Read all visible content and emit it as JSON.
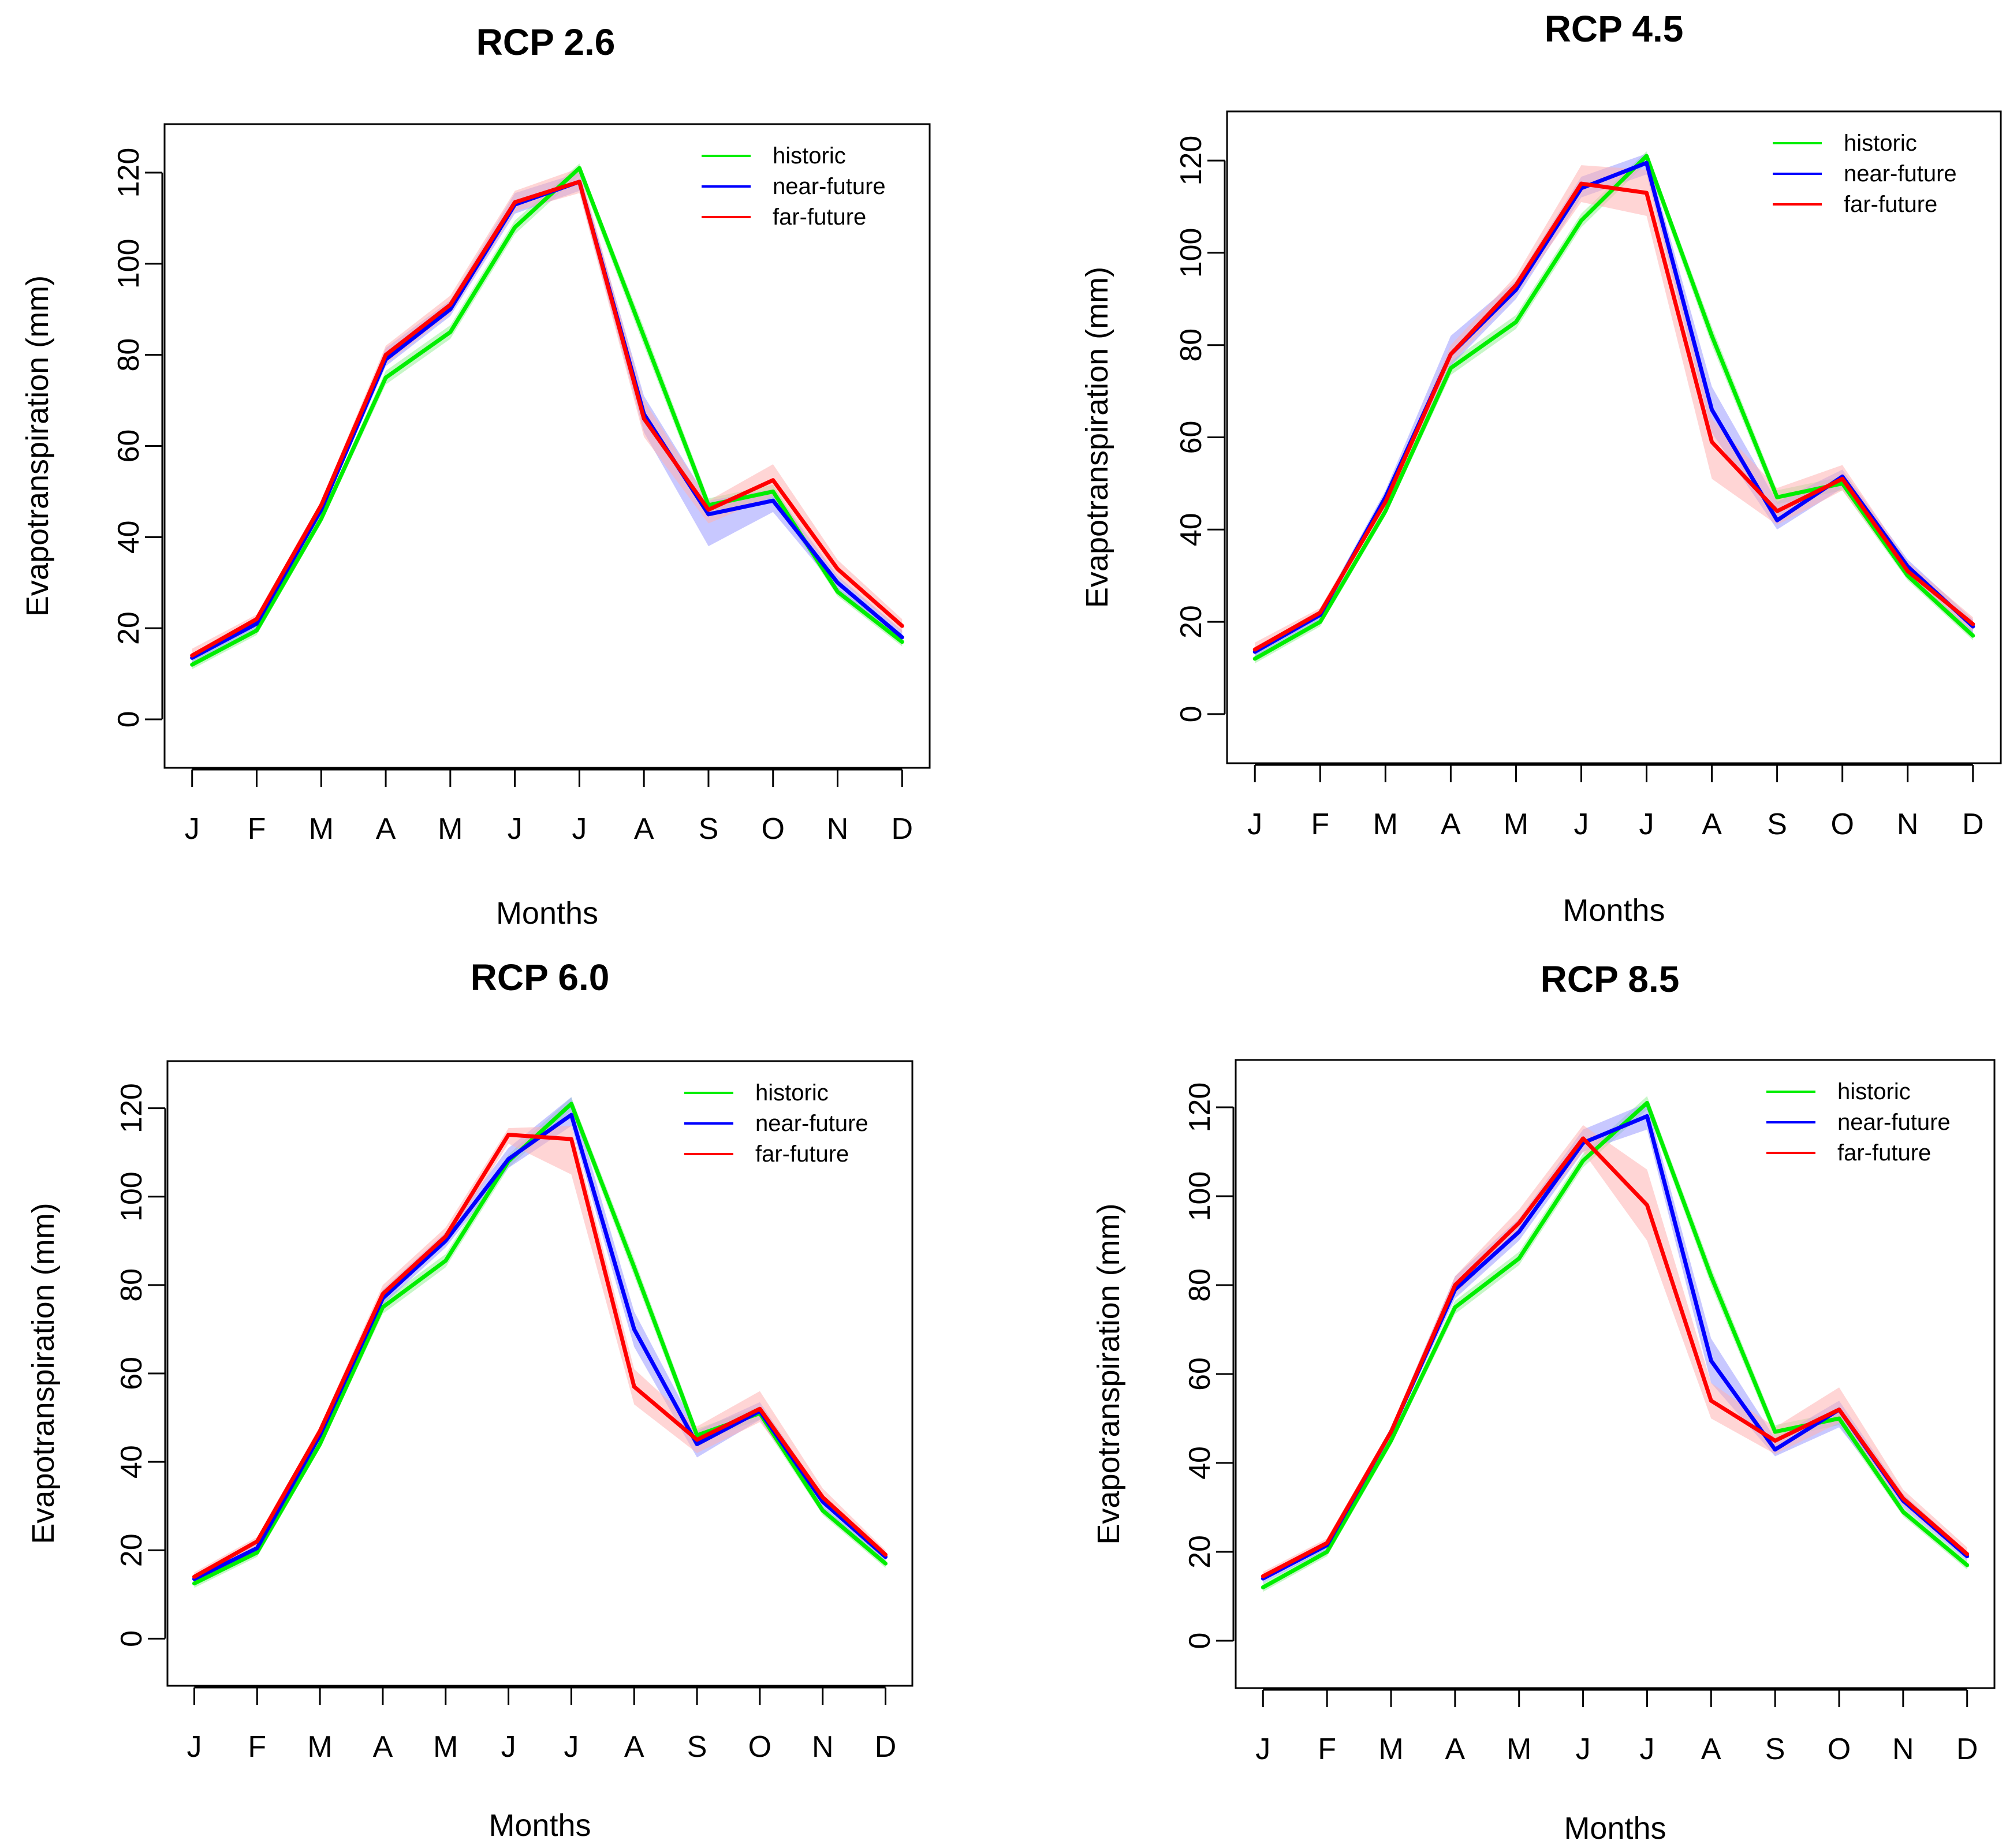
{
  "colors": {
    "historic": "#00ee00",
    "near_future": "#0000ff",
    "far_future": "#ff0000",
    "near_future_band": "#9a9aff",
    "far_future_band": "#ffb3b3",
    "historic_band": "#99ee99"
  },
  "chart_data": [
    {
      "type": "line",
      "title": "RCP 2.6",
      "xlabel": "Months",
      "ylabel": "Evapotranspiration (mm)",
      "categories": [
        "J",
        "F",
        "M",
        "A",
        "M",
        "J",
        "J",
        "A",
        "S",
        "O",
        "N",
        "D"
      ],
      "yticks": [
        0,
        20,
        40,
        60,
        80,
        100,
        120
      ],
      "ylim": [
        -5,
        125
      ],
      "legend_position": "top-right",
      "series": [
        {
          "name": "historic",
          "color_key": "historic",
          "values": [
            12,
            19.5,
            44,
            75,
            85,
            108,
            121,
            84,
            47,
            50,
            28,
            17
          ],
          "band": [
            [
              11,
              13
            ],
            [
              18.5,
              20.5
            ],
            [
              43,
              45
            ],
            [
              73.5,
              76.5
            ],
            [
              83.5,
              86.5
            ],
            [
              106.5,
              109.5
            ],
            [
              119.5,
              122
            ],
            [
              82,
              86
            ],
            [
              45.5,
              48.5
            ],
            [
              48.5,
              51.5
            ],
            [
              27,
              29
            ],
            [
              16,
              18
            ]
          ]
        },
        {
          "name": "near-future",
          "color_key": "near_future",
          "values": [
            13.5,
            21,
            46,
            79,
            90,
            113,
            118,
            67,
            45,
            48,
            30,
            18
          ],
          "band": [
            [
              12.5,
              14.5
            ],
            [
              20,
              22
            ],
            [
              45,
              47
            ],
            [
              77.5,
              81.5
            ],
            [
              88.5,
              92
            ],
            [
              111,
              115.5
            ],
            [
              116,
              120
            ],
            [
              63,
              71
            ],
            [
              38,
              48
            ],
            [
              45.5,
              50.5
            ],
            [
              28.5,
              31.5
            ],
            [
              16.5,
              19.5
            ]
          ]
        },
        {
          "name": "far-future",
          "color_key": "far_future",
          "values": [
            14,
            22,
            47,
            80,
            91,
            113.5,
            118,
            66,
            46,
            52.5,
            33,
            20.5
          ],
          "band": [
            [
              13,
              15.5
            ],
            [
              21,
              23
            ],
            [
              46,
              48
            ],
            [
              78,
              82
            ],
            [
              89,
              93
            ],
            [
              111.5,
              116
            ],
            [
              115.5,
              121
            ],
            [
              62,
              70
            ],
            [
              43,
              48
            ],
            [
              49,
              56
            ],
            [
              31,
              35
            ],
            [
              19,
              22
            ]
          ]
        }
      ]
    },
    {
      "type": "line",
      "title": "RCP 4.5",
      "xlabel": "Months",
      "ylabel": "Evapotranspiration (mm)",
      "categories": [
        "J",
        "F",
        "M",
        "A",
        "M",
        "J",
        "J",
        "A",
        "S",
        "O",
        "N",
        "D"
      ],
      "yticks": [
        0,
        20,
        40,
        60,
        80,
        100,
        120
      ],
      "ylim": [
        -5,
        125
      ],
      "legend_position": "top-right",
      "series": [
        {
          "name": "historic",
          "color_key": "historic",
          "values": [
            12,
            20,
            44,
            75,
            85,
            107,
            121,
            82,
            47,
            50,
            30,
            17
          ],
          "band": [
            [
              11,
              13
            ],
            [
              19,
              21
            ],
            [
              43,
              45
            ],
            [
              73.5,
              76.5
            ],
            [
              83.5,
              86.5
            ],
            [
              105.5,
              108.5
            ],
            [
              119.5,
              122
            ],
            [
              80,
              84
            ],
            [
              45.5,
              48.5
            ],
            [
              48.5,
              51.5
            ],
            [
              29,
              31
            ],
            [
              16,
              18
            ]
          ]
        },
        {
          "name": "near-future",
          "color_key": "near_future",
          "values": [
            13.5,
            21.5,
            47,
            78,
            92,
            114,
            119.5,
            66,
            42,
            51.5,
            32,
            19
          ],
          "band": [
            [
              12.5,
              14.5
            ],
            [
              20.5,
              22.5
            ],
            [
              46,
              48.5
            ],
            [
              75.5,
              82
            ],
            [
              90,
              94
            ],
            [
              112,
              116.5
            ],
            [
              117,
              121.5
            ],
            [
              61,
              71
            ],
            [
              40,
              46
            ],
            [
              49,
              53
            ],
            [
              30.5,
              33.5
            ],
            [
              17.5,
              20.5
            ]
          ]
        },
        {
          "name": "far-future",
          "color_key": "far_future",
          "values": [
            14,
            22,
            46,
            78,
            93,
            115,
            113,
            59,
            44,
            51,
            31,
            19.5
          ],
          "band": [
            [
              13,
              15.5
            ],
            [
              21,
              23
            ],
            [
              45,
              47.5
            ],
            [
              76,
              80
            ],
            [
              91,
              95
            ],
            [
              111,
              119
            ],
            [
              108,
              118
            ],
            [
              51,
              64
            ],
            [
              41,
              49
            ],
            [
              48.5,
              54
            ],
            [
              29.5,
              33
            ],
            [
              18,
              21
            ]
          ]
        }
      ]
    },
    {
      "type": "line",
      "title": "RCP 6.0",
      "xlabel": "Months",
      "ylabel": "Evapotranspiration (mm)",
      "categories": [
        "J",
        "F",
        "M",
        "A",
        "M",
        "J",
        "J",
        "A",
        "S",
        "O",
        "N",
        "D"
      ],
      "yticks": [
        0,
        20,
        40,
        60,
        80,
        100,
        120
      ],
      "ylim": [
        -5,
        125
      ],
      "legend_position": "top-right",
      "series": [
        {
          "name": "historic",
          "color_key": "historic",
          "values": [
            12.5,
            19.5,
            44,
            75,
            85.5,
            108,
            121,
            84,
            46,
            51,
            29,
            17
          ],
          "band": [
            [
              11.5,
              13.5
            ],
            [
              18.5,
              20.5
            ],
            [
              43,
              45
            ],
            [
              73.5,
              76.5
            ],
            [
              84,
              87
            ],
            [
              106.5,
              109.5
            ],
            [
              119.5,
              122.5
            ],
            [
              82,
              86
            ],
            [
              44.5,
              47.5
            ],
            [
              49.5,
              52.5
            ],
            [
              28,
              30
            ],
            [
              16,
              18
            ]
          ]
        },
        {
          "name": "near-future",
          "color_key": "near_future",
          "values": [
            13.5,
            20.5,
            46,
            77,
            90,
            108.5,
            118.5,
            70,
            44,
            51.5,
            31,
            18.5
          ],
          "band": [
            [
              12.5,
              14.5
            ],
            [
              19.5,
              21.5
            ],
            [
              45,
              47
            ],
            [
              75.5,
              79
            ],
            [
              88.5,
              92
            ],
            [
              106.5,
              111
            ],
            [
              116,
              122.5
            ],
            [
              66,
              74
            ],
            [
              41,
              47
            ],
            [
              49.5,
              53.5
            ],
            [
              29.5,
              32.5
            ],
            [
              17.5,
              19.5
            ]
          ]
        },
        {
          "name": "far-future",
          "color_key": "far_future",
          "values": [
            14,
            22,
            47,
            78,
            91,
            114,
            113,
            57,
            45,
            52,
            32,
            19
          ],
          "band": [
            [
              13,
              15
            ],
            [
              21,
              23
            ],
            [
              46,
              48
            ],
            [
              76.5,
              80
            ],
            [
              89.5,
              93
            ],
            [
              112,
              115.5
            ],
            [
              105,
              116
            ],
            [
              53,
              61
            ],
            [
              42,
              48
            ],
            [
              49,
              56
            ],
            [
              30.5,
              34
            ],
            [
              18,
              20
            ]
          ]
        }
      ]
    },
    {
      "type": "line",
      "title": "RCP 8.5",
      "xlabel": "Months",
      "ylabel": "Evapotranspiration (mm)",
      "categories": [
        "J",
        "F",
        "M",
        "A",
        "M",
        "J",
        "J",
        "A",
        "S",
        "O",
        "N",
        "D"
      ],
      "yticks": [
        0,
        20,
        40,
        60,
        80,
        100,
        120
      ],
      "ylim": [
        -5,
        125
      ],
      "legend_position": "top-right",
      "series": [
        {
          "name": "historic",
          "color_key": "historic",
          "values": [
            12,
            20,
            45,
            75,
            86,
            108,
            121,
            82,
            47,
            50,
            29,
            17
          ],
          "band": [
            [
              11,
              13
            ],
            [
              19,
              21
            ],
            [
              44,
              46
            ],
            [
              73.5,
              76.5
            ],
            [
              84.5,
              87.5
            ],
            [
              106.5,
              109.5
            ],
            [
              119.5,
              122.5
            ],
            [
              80,
              84
            ],
            [
              45.5,
              48.5
            ],
            [
              48.5,
              51.5
            ],
            [
              28,
              30
            ],
            [
              16,
              18
            ]
          ]
        },
        {
          "name": "near-future",
          "color_key": "near_future",
          "values": [
            14,
            21.5,
            47,
            79,
            92,
            112,
            118,
            63,
            43,
            52,
            31.5,
            19
          ],
          "band": [
            [
              13,
              15
            ],
            [
              20.5,
              22.5
            ],
            [
              46,
              48
            ],
            [
              77,
              82
            ],
            [
              90,
              95
            ],
            [
              110,
              115
            ],
            [
              115,
              121
            ],
            [
              58,
              68
            ],
            [
              41.5,
              45.5
            ],
            [
              48,
              54
            ],
            [
              30,
              33
            ],
            [
              18,
              20
            ]
          ]
        },
        {
          "name": "far-future",
          "color_key": "far_future",
          "values": [
            14.5,
            22,
            47,
            80,
            94,
            113,
            98,
            54,
            45,
            52,
            32,
            19.5
          ],
          "band": [
            [
              13.5,
              15.5
            ],
            [
              21,
              23
            ],
            [
              46,
              48
            ],
            [
              78,
              82
            ],
            [
              92,
              97
            ],
            [
              110,
              116
            ],
            [
              90,
              106
            ],
            [
              50,
              58
            ],
            [
              42,
              48
            ],
            [
              49,
              57
            ],
            [
              30.5,
              34
            ],
            [
              18.5,
              21
            ]
          ]
        }
      ]
    }
  ]
}
